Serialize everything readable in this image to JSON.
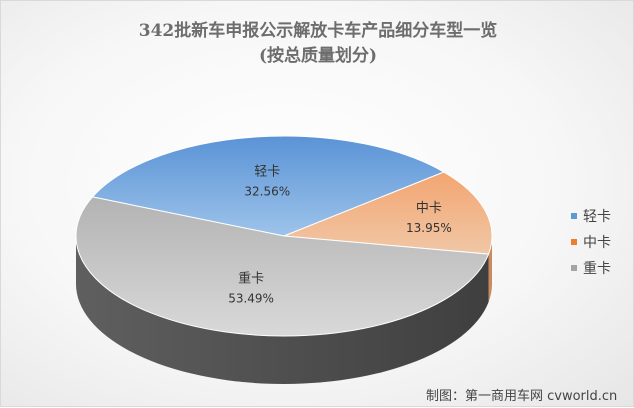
{
  "title": "342批新车申报公示解放卡车产品细分车型一览",
  "subtitle": "(按总质量划分)",
  "source": "制图：第一商用车网 cvworld.cn",
  "chart_data": {
    "type": "pie",
    "title": "342批新车申报公示解放卡车产品细分车型一览",
    "subtitle": "(按总质量划分)",
    "categories": [
      "轻卡",
      "中卡",
      "重卡"
    ],
    "values": [
      32.56,
      13.95,
      53.49
    ],
    "value_labels": [
      "32.56%",
      "13.95%",
      "53.49%"
    ],
    "colors": [
      "#5b9bd5",
      "#ed7d31",
      "#a5a5a5"
    ],
    "legend_position": "right",
    "style": "3d-pie"
  }
}
